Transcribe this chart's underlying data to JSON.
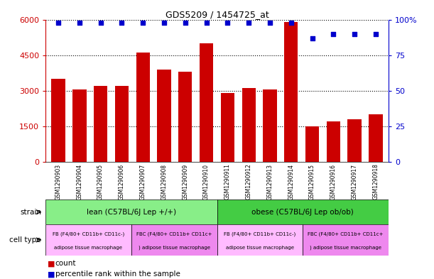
{
  "title": "GDS5209 / 1454725_at",
  "samples": [
    "GSM1290903",
    "GSM1290904",
    "GSM1290905",
    "GSM1290906",
    "GSM1290907",
    "GSM1290908",
    "GSM1290909",
    "GSM1290910",
    "GSM1290911",
    "GSM1290912",
    "GSM1290913",
    "GSM1290914",
    "GSM1290915",
    "GSM1290916",
    "GSM1290917",
    "GSM1290918"
  ],
  "counts": [
    3500,
    3050,
    3200,
    3200,
    4600,
    3900,
    3800,
    5000,
    2900,
    3100,
    3050,
    5900,
    1500,
    1700,
    1800,
    2000
  ],
  "percentiles": [
    98,
    98,
    98,
    98,
    98,
    98,
    98,
    98,
    98,
    98,
    98,
    98,
    87,
    90,
    90,
    90
  ],
  "ylim_left": [
    0,
    6000
  ],
  "ylim_right": [
    0,
    100
  ],
  "yticks_left": [
    0,
    1500,
    3000,
    4500,
    6000
  ],
  "yticks_right": [
    0,
    25,
    50,
    75,
    100
  ],
  "bar_color": "#cc0000",
  "dot_color": "#0000cc",
  "strain_lean_label": "lean (C57BL/6J Lep +/+)",
  "strain_obese_label": "obese (C57BL/6J Lep ob/ob)",
  "strain_lean_color": "#88ee88",
  "strain_obese_color": "#44cc44",
  "cell_type_1_color": "#ffbbff",
  "cell_type_2_color": "#ee88ee",
  "lean_count": 8,
  "obese_count": 8,
  "cell_type_split": 4,
  "cell_type_1_line1": "FB (F4/80+ CD11b+ CD11c-)",
  "cell_type_1_line2": "adipose tissue macrophage",
  "cell_type_2_line1": "FBC (F4/80+ CD11b+ CD11c+",
  "cell_type_2_line2": ") adipose tissue macrophage"
}
